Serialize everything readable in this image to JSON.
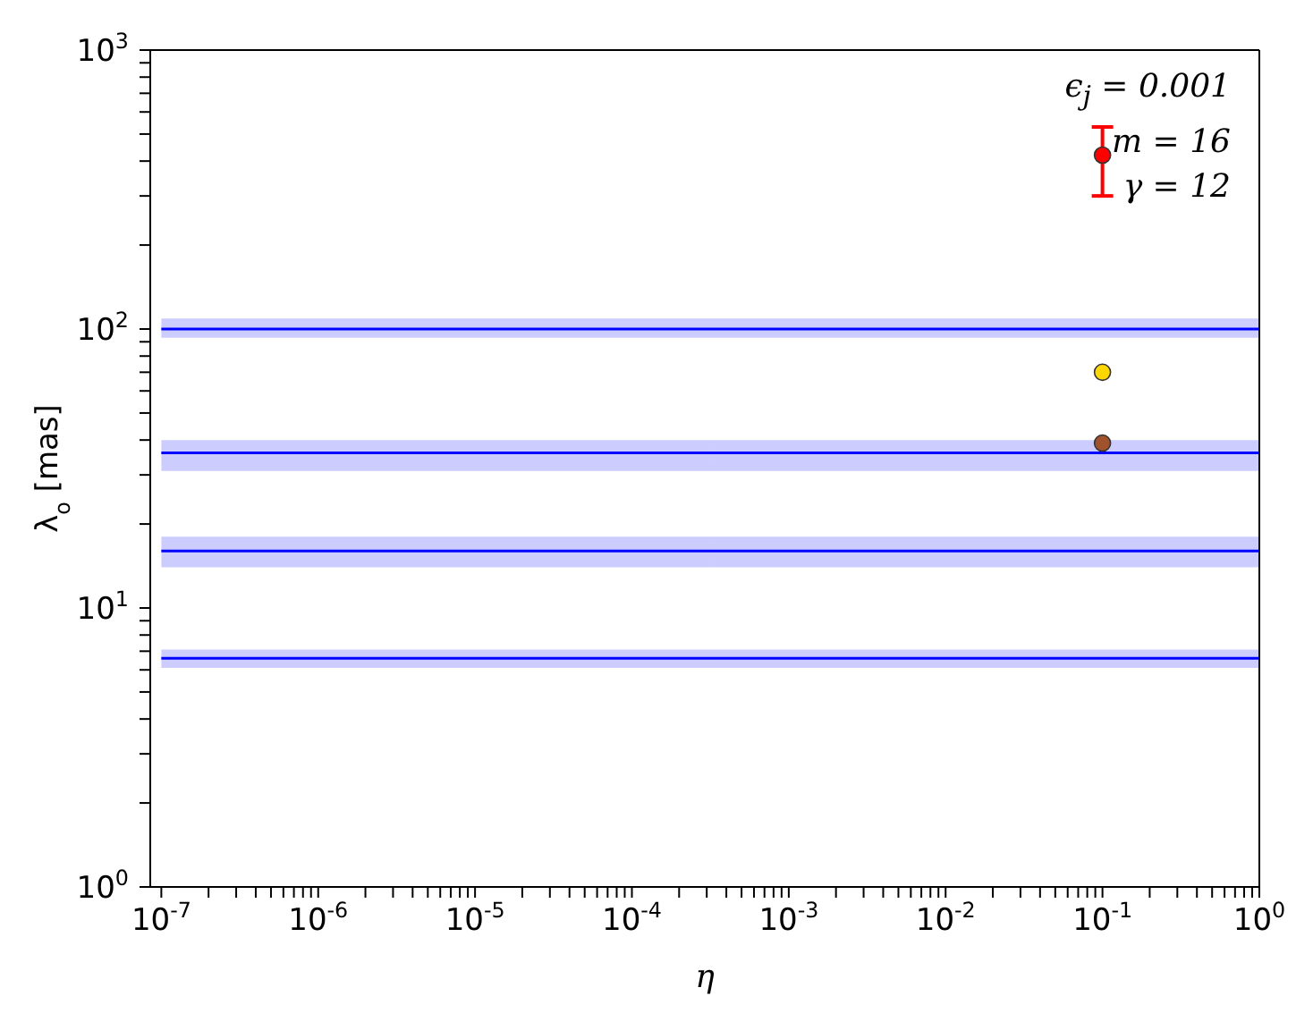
{
  "chart_data": {
    "type": "line",
    "xlabel": "η",
    "ylabel": "λ$_{o}$ [mas]",
    "log": "xy",
    "grid": false,
    "legend": false,
    "marker": "none",
    "line_style": "solid",
    "xlim": [
      8.5e-08,
      1
    ],
    "ylim": [
      1,
      1000
    ],
    "xticks": [
      {
        "value": 1e-07,
        "label": "10$^{-7}$"
      },
      {
        "value": 2e-07,
        "label": null
      },
      {
        "value": 3e-07,
        "label": null
      },
      {
        "value": 4e-07,
        "label": null
      },
      {
        "value": 5e-07,
        "label": null
      },
      {
        "value": 6e-07,
        "label": null
      },
      {
        "value": 7e-07,
        "label": null
      },
      {
        "value": 8e-07,
        "label": null
      },
      {
        "value": 9e-07,
        "label": null
      },
      {
        "value": 1e-06,
        "label": "10$^{-6}$"
      },
      {
        "value": 2e-06,
        "label": null
      },
      {
        "value": 3e-06,
        "label": null
      },
      {
        "value": 4e-06,
        "label": null
      },
      {
        "value": 5e-06,
        "label": null
      },
      {
        "value": 6e-06,
        "label": null
      },
      {
        "value": 7e-06,
        "label": null
      },
      {
        "value": 8e-06,
        "label": null
      },
      {
        "value": 9e-06,
        "label": null
      },
      {
        "value": 1e-05,
        "label": "10$^{-5}$"
      },
      {
        "value": 2e-05,
        "label": null
      },
      {
        "value": 3e-05,
        "label": null
      },
      {
        "value": 4e-05,
        "label": null
      },
      {
        "value": 5e-05,
        "label": null
      },
      {
        "value": 6e-05,
        "label": null
      },
      {
        "value": 7e-05,
        "label": null
      },
      {
        "value": 8e-05,
        "label": null
      },
      {
        "value": 9e-05,
        "label": null
      },
      {
        "value": 0.0001,
        "label": "10$^{-4}$"
      },
      {
        "value": 0.0002,
        "label": null
      },
      {
        "value": 0.0003,
        "label": null
      },
      {
        "value": 0.0004,
        "label": null
      },
      {
        "value": 0.0005,
        "label": null
      },
      {
        "value": 0.0006,
        "label": null
      },
      {
        "value": 0.0007,
        "label": null
      },
      {
        "value": 0.0008,
        "label": null
      },
      {
        "value": 0.0009,
        "label": null
      },
      {
        "value": 0.001,
        "label": "10$^{-3}$"
      },
      {
        "value": 0.002,
        "label": null
      },
      {
        "value": 0.003,
        "label": null
      },
      {
        "value": 0.004,
        "label": null
      },
      {
        "value": 0.005,
        "label": null
      },
      {
        "value": 0.006,
        "label": null
      },
      {
        "value": 0.007,
        "label": null
      },
      {
        "value": 0.008,
        "label": null
      },
      {
        "value": 0.009,
        "label": null
      },
      {
        "value": 0.01,
        "label": "10$^{-2}$"
      },
      {
        "value": 0.02,
        "label": null
      },
      {
        "value": 0.03,
        "label": null
      },
      {
        "value": 0.04,
        "label": null
      },
      {
        "value": 0.05,
        "label": null
      },
      {
        "value": 0.06,
        "label": null
      },
      {
        "value": 0.07,
        "label": null
      },
      {
        "value": 0.08,
        "label": null
      },
      {
        "value": 0.09,
        "label": null
      },
      {
        "value": 0.1,
        "label": "10$^{-1}$"
      },
      {
        "value": 0.2,
        "label": null
      },
      {
        "value": 0.3,
        "label": null
      },
      {
        "value": 0.4,
        "label": null
      },
      {
        "value": 0.5,
        "label": null
      },
      {
        "value": 0.6,
        "label": null
      },
      {
        "value": 0.7,
        "label": null
      },
      {
        "value": 0.8,
        "label": null
      },
      {
        "value": 0.9,
        "label": null
      },
      {
        "value": 1,
        "label": "10$^{0}$"
      }
    ],
    "yticks": [
      {
        "value": 1,
        "label": "10$^{0}$"
      },
      {
        "value": 2,
        "label": null
      },
      {
        "value": 3,
        "label": null
      },
      {
        "value": 4,
        "label": null
      },
      {
        "value": 5,
        "label": null
      },
      {
        "value": 6,
        "label": null
      },
      {
        "value": 7,
        "label": null
      },
      {
        "value": 8,
        "label": null
      },
      {
        "value": 9,
        "label": null
      },
      {
        "value": 10,
        "label": "10$^{1}$"
      },
      {
        "value": 20,
        "label": null
      },
      {
        "value": 30,
        "label": null
      },
      {
        "value": 40,
        "label": null
      },
      {
        "value": 50,
        "label": null
      },
      {
        "value": 60,
        "label": null
      },
      {
        "value": 70,
        "label": null
      },
      {
        "value": 80,
        "label": null
      },
      {
        "value": 90,
        "label": null
      },
      {
        "value": 100,
        "label": "10$^{2}$"
      },
      {
        "value": 200,
        "label": null
      },
      {
        "value": 300,
        "label": null
      },
      {
        "value": 400,
        "label": null
      },
      {
        "value": 500,
        "label": null
      },
      {
        "value": 600,
        "label": null
      },
      {
        "value": 700,
        "label": null
      },
      {
        "value": 800,
        "label": null
      },
      {
        "value": 900,
        "label": null
      },
      {
        "value": 1000,
        "label": "10$^{3}$"
      }
    ],
    "series": [
      {
        "color": "#0000ff",
        "x": [
          1e-07,
          1
        ],
        "values": [
          100,
          100
        ],
        "lower": [
          93,
          93
        ],
        "upper": [
          109,
          109
        ]
      },
      {
        "color": "#0000ff",
        "x": [
          1e-07,
          1
        ],
        "values": [
          36,
          36
        ],
        "lower": [
          31,
          31
        ],
        "upper": [
          40,
          40
        ]
      },
      {
        "color": "#0000ff",
        "x": [
          1e-07,
          1
        ],
        "values": [
          16,
          16
        ],
        "lower": [
          14,
          14
        ],
        "upper": [
          18,
          18
        ]
      },
      {
        "color": "#0000ff",
        "x": [
          1e-07,
          1
        ],
        "values": [
          6.6,
          6.6
        ],
        "lower": [
          6.1,
          6.1
        ],
        "upper": [
          7.1,
          7.1
        ]
      },
      {
        "type": "scatter",
        "marker": "circle",
        "color": "#ff0000",
        "x": [
          0.1
        ],
        "values": [
          420
        ],
        "errors": [
          [
            300,
            530
          ]
        ]
      },
      {
        "type": "scatter",
        "marker": "circle",
        "color": "#ffd700",
        "x": [
          0.1
        ],
        "values": [
          70
        ]
      },
      {
        "type": "scatter",
        "marker": "circle",
        "color": "#a0522d",
        "x": [
          0.1
        ],
        "values": [
          39
        ]
      }
    ],
    "annotations": [
      "ϵ$_{j}$ = 0.001",
      "m = 16",
      "γ = 12"
    ]
  }
}
